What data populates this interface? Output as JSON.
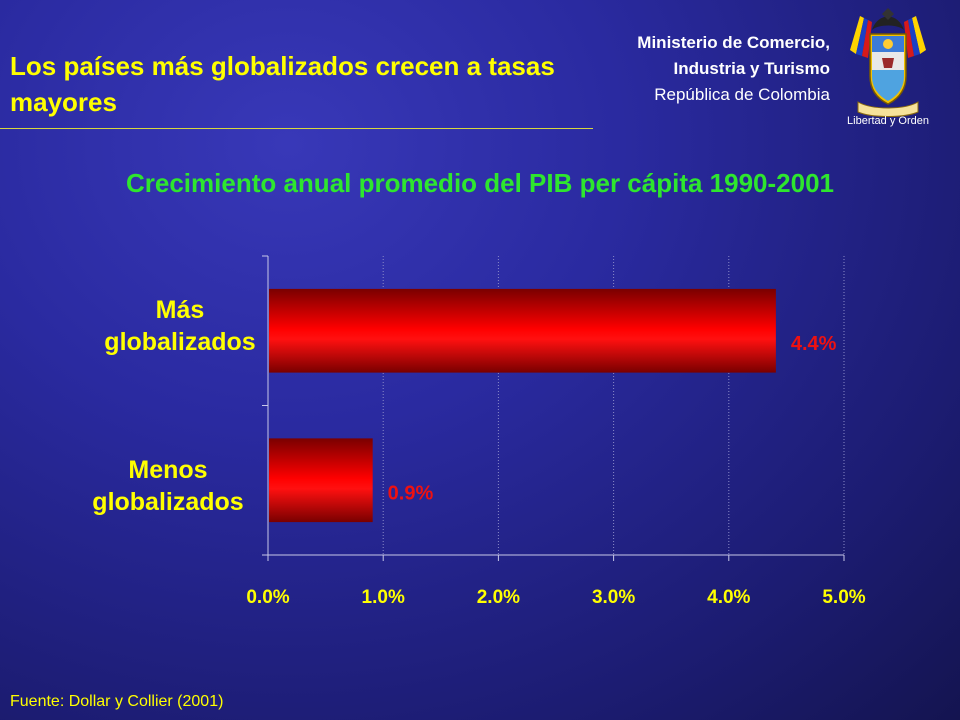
{
  "header": {
    "title": "Los países más globalizados crecen a tasas mayores",
    "ministry_line1": "Ministerio de Comercio,",
    "ministry_line2": "Industria y Turismo",
    "ministry_line3": "República de Colombia",
    "motto": "Libertad y Orden"
  },
  "colors": {
    "title": "#ffff00",
    "chart_title": "#2ee62e",
    "bar": "#ff0000",
    "value_labels": "#ee1111"
  },
  "chart_data": {
    "type": "bar",
    "orientation": "horizontal",
    "title": "Crecimiento anual promedio del PIB per cápita 1990-2001",
    "categories": [
      "Más globalizados",
      "Menos globalizados"
    ],
    "values": [
      4.4,
      0.9
    ],
    "value_labels": [
      "4.4%",
      "0.9%"
    ],
    "xlim": [
      0,
      5
    ],
    "xticks": [
      0,
      1,
      2,
      3,
      4,
      5
    ],
    "xtick_labels": [
      "0.0%",
      "1.0%",
      "2.0%",
      "3.0%",
      "4.0%",
      "5.0%"
    ],
    "grid": "vertical",
    "legend": "none"
  },
  "footer": {
    "source": "Fuente: Dollar y Collier (2001)"
  }
}
